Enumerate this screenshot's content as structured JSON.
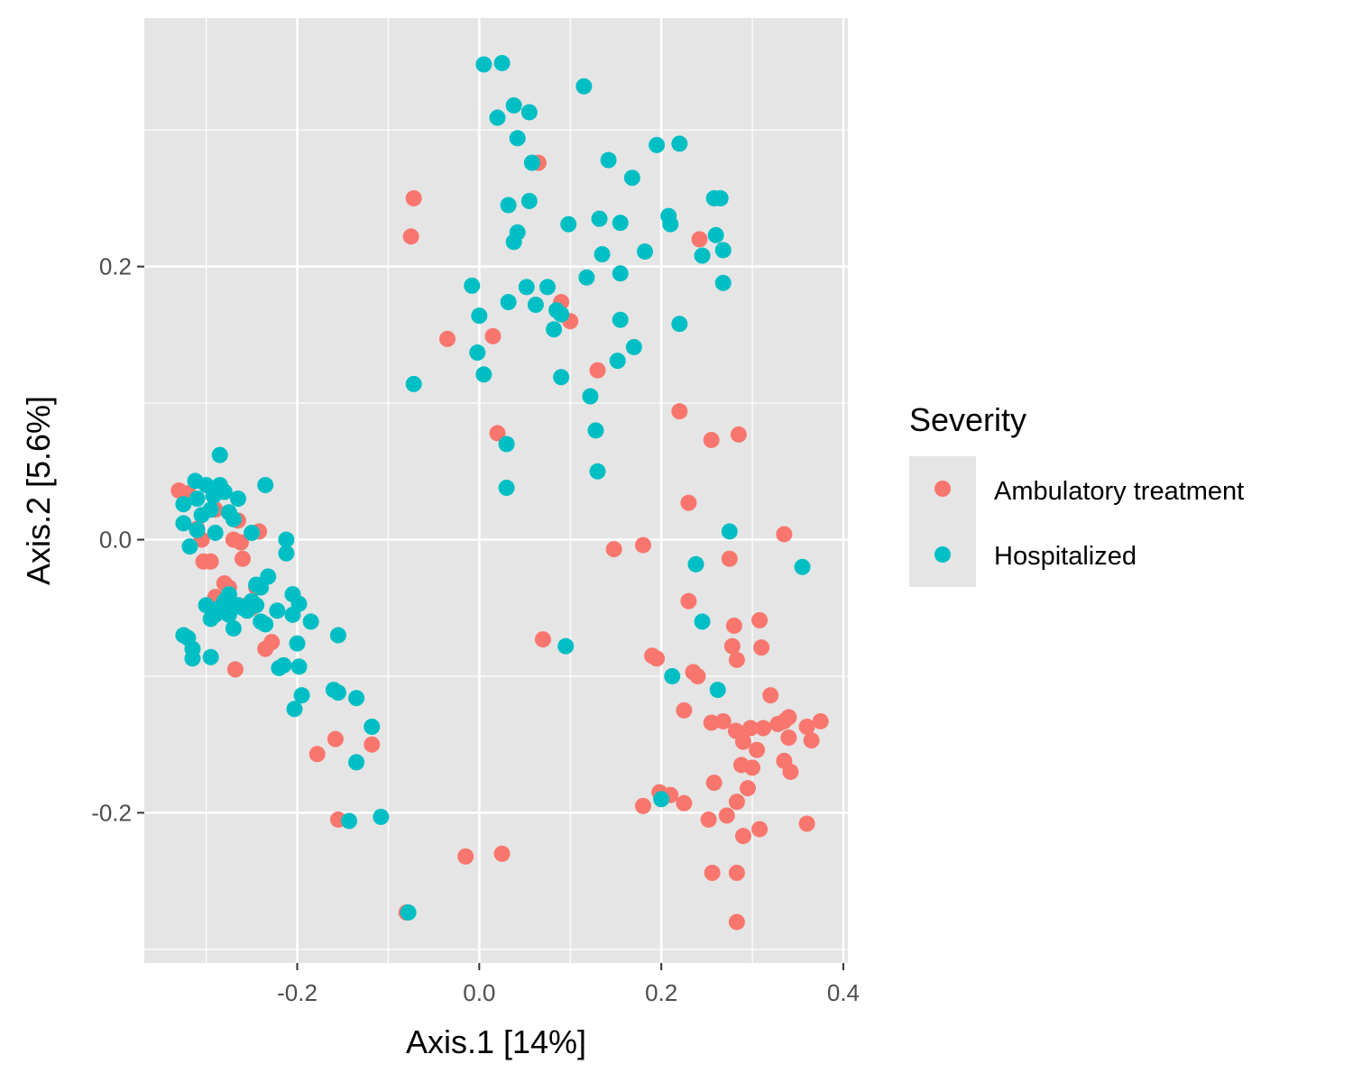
{
  "chart_data": {
    "type": "scatter",
    "xlabel": "Axis.1   [14%]",
    "ylabel": "Axis.2   [5.6%]",
    "xlim": [
      -0.368,
      0.405
    ],
    "ylim": [
      -0.31,
      0.382
    ],
    "x_ticks": [
      -0.2,
      0.0,
      0.2,
      0.4
    ],
    "x_tick_labels": [
      "-0.2",
      "0.0",
      "0.2",
      "0.4"
    ],
    "y_ticks": [
      -0.2,
      0.0,
      0.2
    ],
    "y_tick_labels": [
      "-0.2",
      "0.0",
      "0.2"
    ],
    "grid": true,
    "background": "#e5e5e5",
    "legend": {
      "title": "Severity",
      "position": "right"
    },
    "series": [
      {
        "name": "Ambulatory treatment",
        "color": "#f8766d",
        "points": [
          [
            -0.33,
            0.036
          ],
          [
            -0.32,
            0.034
          ],
          [
            -0.31,
            0.008
          ],
          [
            -0.305,
            0.0
          ],
          [
            -0.303,
            -0.016
          ],
          [
            -0.295,
            -0.016
          ],
          [
            -0.29,
            0.022
          ],
          [
            -0.28,
            -0.032
          ],
          [
            -0.275,
            -0.035
          ],
          [
            -0.27,
            0.0
          ],
          [
            -0.265,
            0.014
          ],
          [
            -0.262,
            -0.002
          ],
          [
            -0.26,
            -0.014
          ],
          [
            -0.255,
            -0.048
          ],
          [
            -0.25,
            -0.05
          ],
          [
            -0.245,
            -0.035
          ],
          [
            -0.242,
            0.006
          ],
          [
            -0.235,
            -0.08
          ],
          [
            -0.228,
            -0.075
          ],
          [
            -0.268,
            -0.095
          ],
          [
            -0.29,
            -0.042
          ],
          [
            -0.178,
            -0.157
          ],
          [
            -0.158,
            -0.146
          ],
          [
            -0.155,
            -0.205
          ],
          [
            -0.118,
            -0.15
          ],
          [
            -0.08,
            -0.273
          ],
          [
            -0.015,
            -0.232
          ],
          [
            0.025,
            -0.23
          ],
          [
            -0.072,
            0.25
          ],
          [
            -0.075,
            0.222
          ],
          [
            -0.035,
            0.147
          ],
          [
            0.015,
            0.149
          ],
          [
            0.02,
            0.078
          ],
          [
            0.065,
            0.276
          ],
          [
            0.09,
            0.174
          ],
          [
            0.1,
            0.16
          ],
          [
            0.13,
            0.124
          ],
          [
            0.07,
            -0.073
          ],
          [
            0.148,
            -0.007
          ],
          [
            0.18,
            -0.004
          ],
          [
            0.242,
            0.22
          ],
          [
            0.22,
            0.094
          ],
          [
            0.255,
            0.073
          ],
          [
            0.285,
            0.077
          ],
          [
            0.23,
            0.027
          ],
          [
            0.335,
            0.004
          ],
          [
            0.275,
            -0.014
          ],
          [
            0.23,
            -0.045
          ],
          [
            0.28,
            -0.063
          ],
          [
            0.308,
            -0.059
          ],
          [
            0.278,
            -0.078
          ],
          [
            0.31,
            -0.079
          ],
          [
            0.283,
            -0.088
          ],
          [
            0.19,
            -0.085
          ],
          [
            0.195,
            -0.087
          ],
          [
            0.235,
            -0.097
          ],
          [
            0.24,
            -0.1
          ],
          [
            0.32,
            -0.114
          ],
          [
            0.225,
            -0.125
          ],
          [
            0.255,
            -0.134
          ],
          [
            0.268,
            -0.133
          ],
          [
            0.282,
            -0.14
          ],
          [
            0.29,
            -0.148
          ],
          [
            0.298,
            -0.138
          ],
          [
            0.305,
            -0.154
          ],
          [
            0.312,
            -0.138
          ],
          [
            0.328,
            -0.135
          ],
          [
            0.335,
            -0.133
          ],
          [
            0.34,
            -0.13
          ],
          [
            0.36,
            -0.137
          ],
          [
            0.375,
            -0.133
          ],
          [
            0.34,
            -0.145
          ],
          [
            0.365,
            -0.147
          ],
          [
            0.288,
            -0.165
          ],
          [
            0.3,
            -0.167
          ],
          [
            0.335,
            -0.162
          ],
          [
            0.342,
            -0.17
          ],
          [
            0.258,
            -0.178
          ],
          [
            0.295,
            -0.182
          ],
          [
            0.198,
            -0.185
          ],
          [
            0.21,
            -0.187
          ],
          [
            0.18,
            -0.195
          ],
          [
            0.225,
            -0.193
          ],
          [
            0.283,
            -0.192
          ],
          [
            0.272,
            -0.202
          ],
          [
            0.252,
            -0.205
          ],
          [
            0.308,
            -0.212
          ],
          [
            0.29,
            -0.217
          ],
          [
            0.36,
            -0.208
          ],
          [
            0.256,
            -0.244
          ],
          [
            0.283,
            -0.244
          ],
          [
            0.283,
            -0.28
          ]
        ]
      },
      {
        "name": "Hospitalized",
        "color": "#00bfc4",
        "points": [
          [
            -0.312,
            0.043
          ],
          [
            -0.3,
            0.04
          ],
          [
            -0.292,
            0.032
          ],
          [
            -0.285,
            0.062
          ],
          [
            -0.285,
            0.04
          ],
          [
            -0.28,
            0.035
          ],
          [
            -0.275,
            0.02
          ],
          [
            -0.265,
            0.03
          ],
          [
            -0.325,
            0.026
          ],
          [
            -0.31,
            0.03
          ],
          [
            -0.325,
            0.012
          ],
          [
            -0.305,
            0.018
          ],
          [
            -0.295,
            0.022
          ],
          [
            -0.29,
            0.005
          ],
          [
            -0.318,
            -0.005
          ],
          [
            -0.31,
            0.007
          ],
          [
            -0.25,
            0.005
          ],
          [
            -0.235,
            0.04
          ],
          [
            -0.27,
            0.015
          ],
          [
            -0.275,
            -0.04
          ],
          [
            -0.28,
            -0.045
          ],
          [
            -0.285,
            -0.05
          ],
          [
            -0.29,
            -0.055
          ],
          [
            -0.3,
            -0.048
          ],
          [
            -0.295,
            -0.058
          ],
          [
            -0.275,
            -0.055
          ],
          [
            -0.27,
            -0.065
          ],
          [
            -0.265,
            -0.048
          ],
          [
            -0.26,
            -0.05
          ],
          [
            -0.255,
            -0.052
          ],
          [
            -0.25,
            -0.045
          ],
          [
            -0.245,
            -0.048
          ],
          [
            -0.24,
            -0.06
          ],
          [
            -0.235,
            -0.062
          ],
          [
            -0.245,
            -0.033
          ],
          [
            -0.24,
            -0.035
          ],
          [
            -0.232,
            -0.027
          ],
          [
            -0.325,
            -0.07
          ],
          [
            -0.32,
            -0.072
          ],
          [
            -0.315,
            -0.08
          ],
          [
            -0.315,
            -0.087
          ],
          [
            -0.295,
            -0.086
          ],
          [
            -0.222,
            -0.052
          ],
          [
            -0.215,
            -0.092
          ],
          [
            -0.22,
            -0.094
          ],
          [
            -0.212,
            0.0
          ],
          [
            -0.212,
            -0.01
          ],
          [
            -0.205,
            -0.04
          ],
          [
            -0.198,
            -0.047
          ],
          [
            -0.205,
            -0.055
          ],
          [
            -0.185,
            -0.06
          ],
          [
            -0.2,
            -0.076
          ],
          [
            -0.198,
            -0.093
          ],
          [
            -0.195,
            -0.114
          ],
          [
            -0.203,
            -0.124
          ],
          [
            -0.16,
            -0.11
          ],
          [
            -0.155,
            -0.112
          ],
          [
            -0.155,
            -0.07
          ],
          [
            -0.135,
            -0.116
          ],
          [
            -0.118,
            -0.137
          ],
          [
            -0.135,
            -0.163
          ],
          [
            -0.143,
            -0.206
          ],
          [
            -0.108,
            -0.203
          ],
          [
            -0.078,
            -0.273
          ],
          [
            -0.072,
            0.114
          ],
          [
            0.005,
            0.348
          ],
          [
            0.025,
            0.349
          ],
          [
            0.115,
            0.332
          ],
          [
            0.02,
            0.309
          ],
          [
            0.038,
            0.318
          ],
          [
            0.055,
            0.313
          ],
          [
            0.042,
            0.294
          ],
          [
            0.058,
            0.276
          ],
          [
            0.142,
            0.278
          ],
          [
            0.195,
            0.289
          ],
          [
            0.22,
            0.29
          ],
          [
            0.168,
            0.265
          ],
          [
            0.032,
            0.245
          ],
          [
            0.055,
            0.248
          ],
          [
            0.098,
            0.231
          ],
          [
            0.132,
            0.235
          ],
          [
            0.155,
            0.232
          ],
          [
            0.042,
            0.225
          ],
          [
            0.038,
            0.218
          ],
          [
            0.135,
            0.209
          ],
          [
            0.208,
            0.237
          ],
          [
            0.21,
            0.231
          ],
          [
            0.258,
            0.25
          ],
          [
            0.265,
            0.25
          ],
          [
            0.26,
            0.223
          ],
          [
            0.268,
            0.212
          ],
          [
            0.245,
            0.208
          ],
          [
            0.182,
            0.211
          ],
          [
            0.118,
            0.192
          ],
          [
            0.155,
            0.195
          ],
          [
            -0.008,
            0.186
          ],
          [
            0.052,
            0.185
          ],
          [
            0.075,
            0.185
          ],
          [
            0.032,
            0.174
          ],
          [
            0.062,
            0.172
          ],
          [
            0.085,
            0.168
          ],
          [
            0.09,
            0.165
          ],
          [
            0.0,
            0.164
          ],
          [
            0.155,
            0.161
          ],
          [
            0.22,
            0.158
          ],
          [
            0.268,
            0.188
          ],
          [
            0.082,
            0.154
          ],
          [
            0.17,
            0.141
          ],
          [
            -0.002,
            0.137
          ],
          [
            0.152,
            0.131
          ],
          [
            0.005,
            0.121
          ],
          [
            0.09,
            0.119
          ],
          [
            0.122,
            0.105
          ],
          [
            0.128,
            0.08
          ],
          [
            0.03,
            0.07
          ],
          [
            0.13,
            0.05
          ],
          [
            0.03,
            0.038
          ],
          [
            0.275,
            0.006
          ],
          [
            0.355,
            -0.02
          ],
          [
            0.238,
            -0.018
          ],
          [
            0.245,
            -0.06
          ],
          [
            0.095,
            -0.078
          ],
          [
            0.212,
            -0.1
          ],
          [
            0.262,
            -0.11
          ],
          [
            0.2,
            -0.19
          ]
        ]
      }
    ]
  }
}
